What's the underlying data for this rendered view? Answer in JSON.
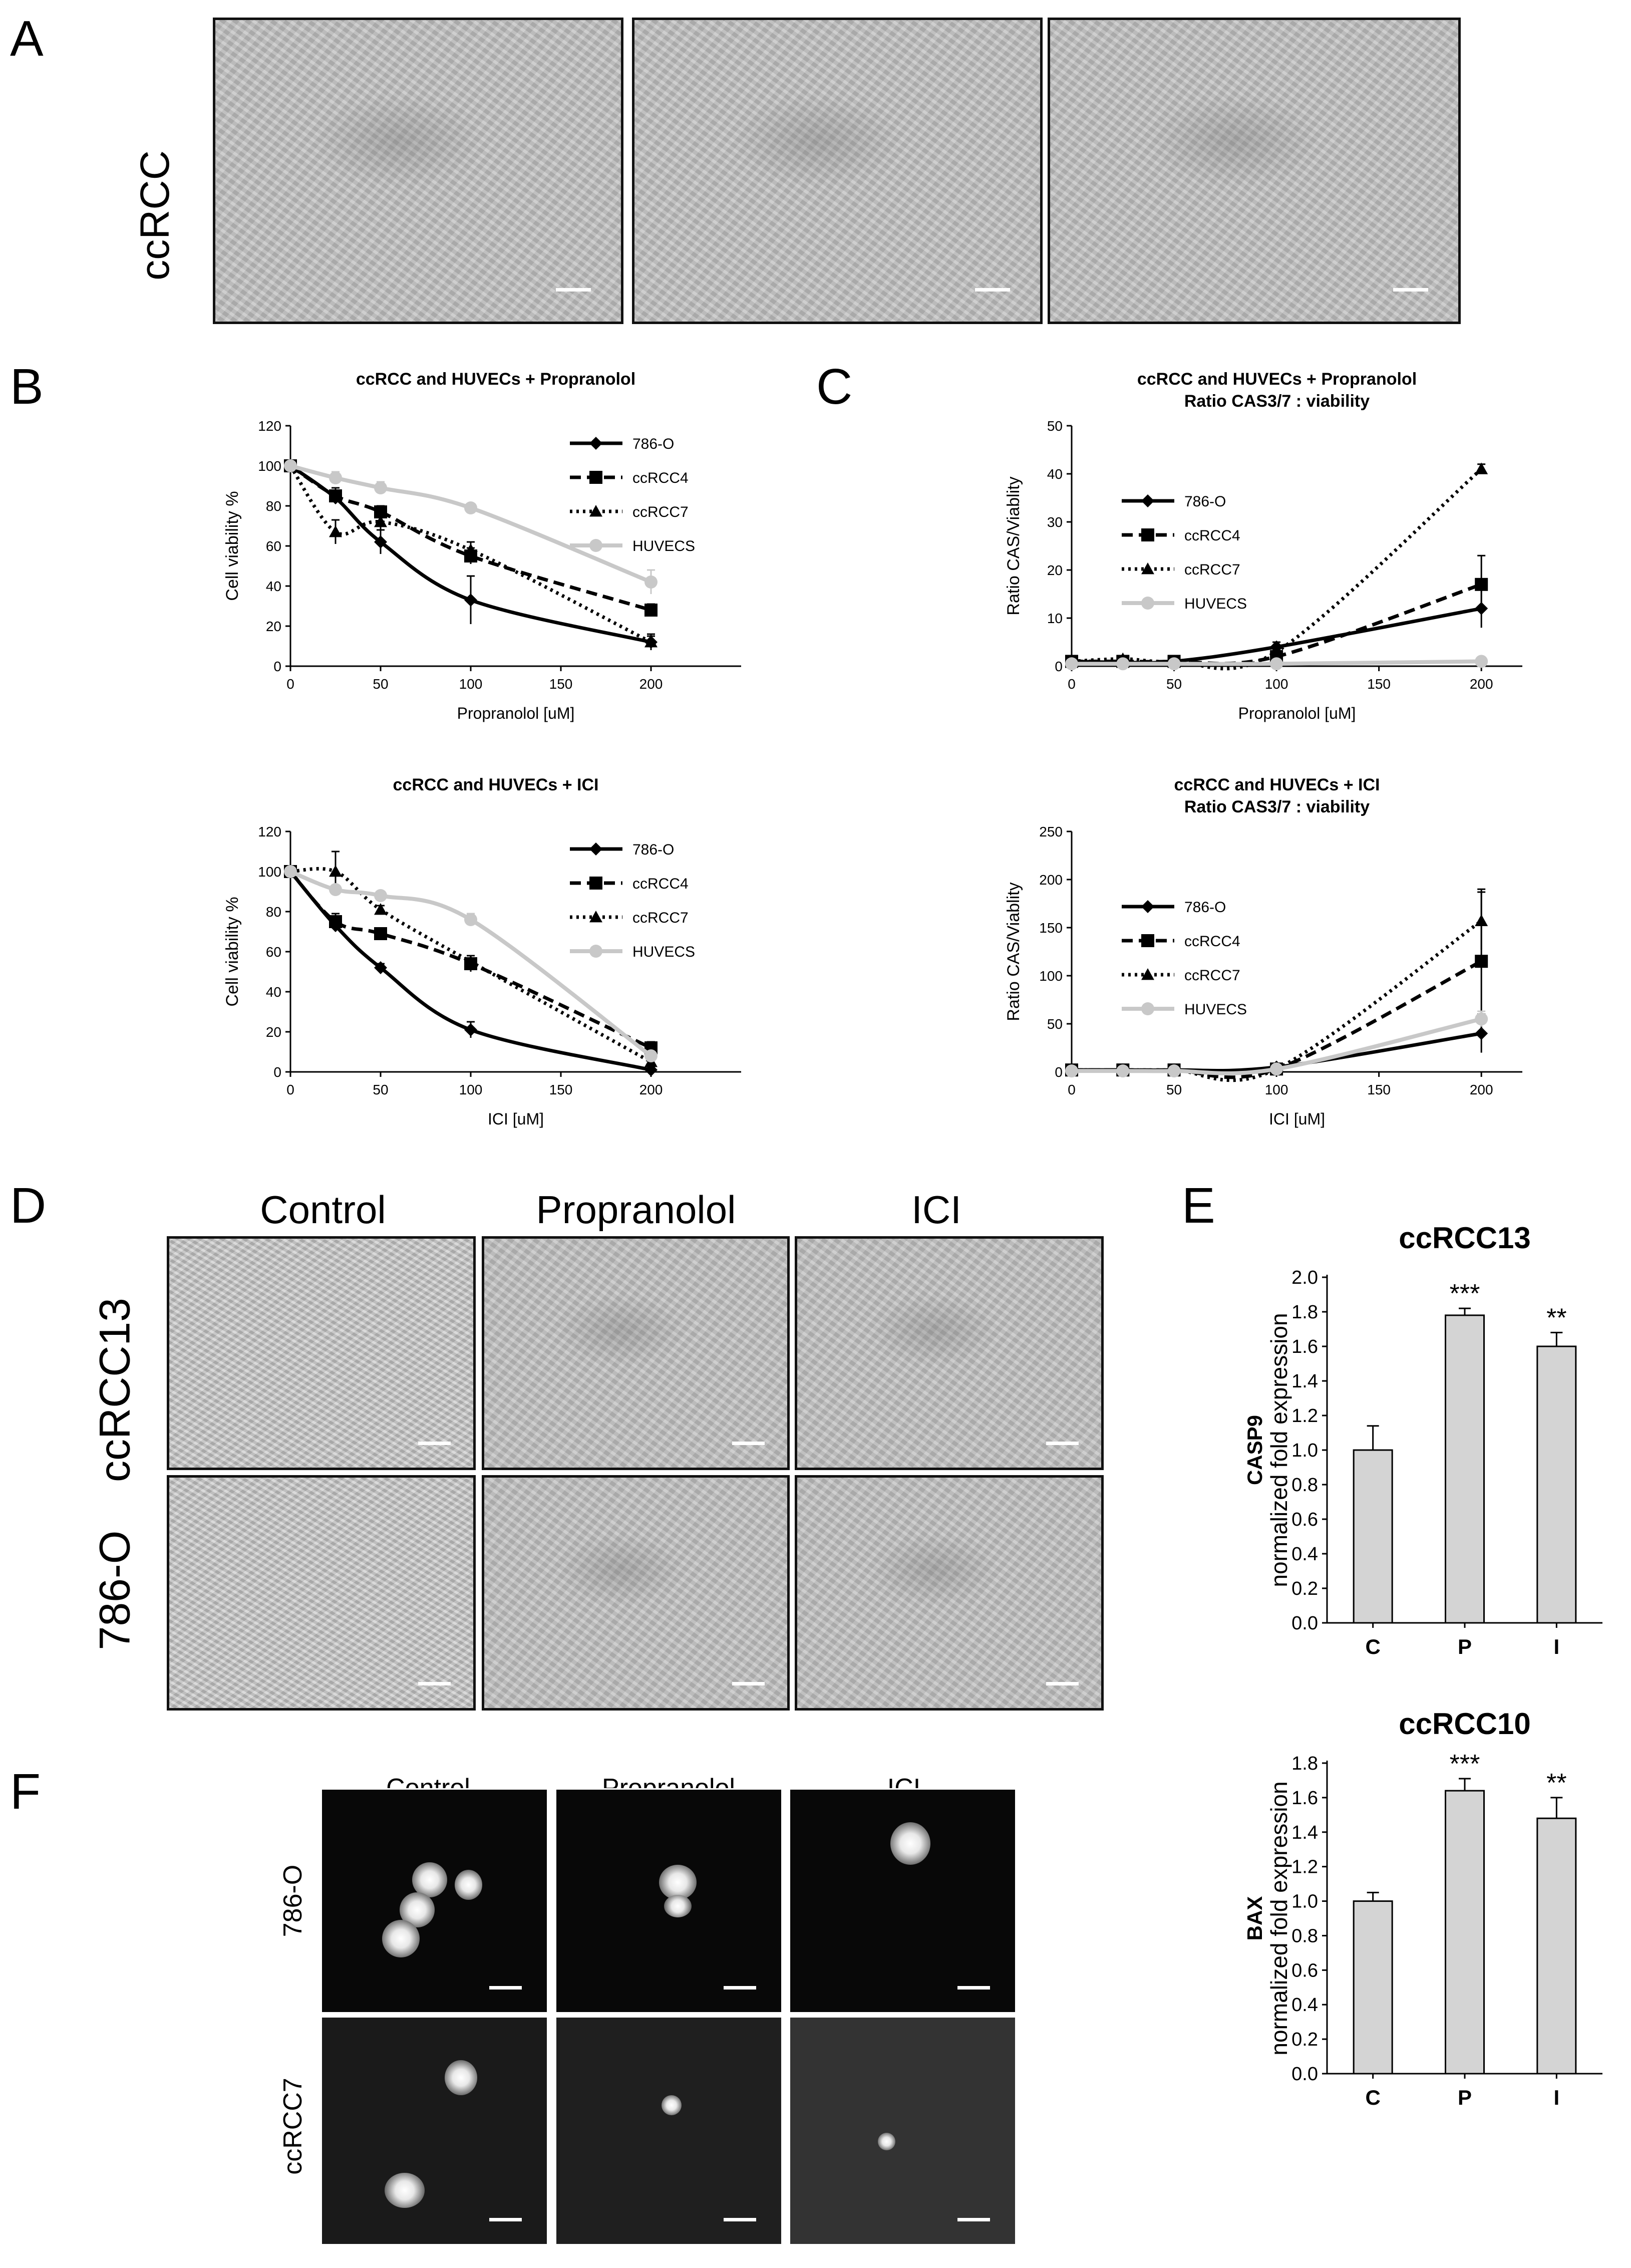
{
  "panels": {
    "A": {
      "letter": "A",
      "row_label": "ccRCC"
    },
    "B": {
      "letter": "B"
    },
    "C": {
      "letter": "C"
    },
    "D": {
      "letter": "D",
      "columns": [
        "Control",
        "Propranolol",
        "ICI"
      ],
      "rows": [
        "ccRCC13",
        "786-O"
      ]
    },
    "E": {
      "letter": "E"
    },
    "F": {
      "letter": "F",
      "columns": [
        "Control",
        "Propranolol",
        "ICI"
      ],
      "rows": [
        "786-O",
        "ccRCC7"
      ]
    }
  },
  "chart_data": [
    {
      "id": "B1",
      "type": "line",
      "title": "ccRCC and HUVECs + Propranolol",
      "xlabel": "Propranolol [uM]",
      "ylabel": "Cell viability %",
      "xlim": [
        0,
        250
      ],
      "ylim": [
        0,
        120
      ],
      "xticks": [
        "0",
        "50",
        "100",
        "150",
        "200"
      ],
      "yticks": [
        "0",
        "20",
        "40",
        "60",
        "80",
        "100",
        "120"
      ],
      "legend_position": "top-right",
      "series": [
        {
          "name": "786-O",
          "marker": "diamond",
          "style": "solid",
          "color": "#000000",
          "x": [
            0,
            25,
            50,
            100,
            200
          ],
          "y": [
            100,
            84,
            62,
            33,
            12
          ],
          "err": [
            0,
            3,
            6,
            12,
            4
          ]
        },
        {
          "name": "ccRCC4",
          "marker": "square",
          "style": "dashed",
          "color": "#000000",
          "x": [
            0,
            25,
            50,
            100,
            200
          ],
          "y": [
            100,
            85,
            77,
            55,
            28
          ],
          "err": [
            0,
            4,
            3,
            4,
            3
          ]
        },
        {
          "name": "ccRCC7",
          "marker": "triangle",
          "style": "dotted",
          "color": "#000000",
          "x": [
            0,
            25,
            50,
            100,
            200
          ],
          "y": [
            100,
            67,
            72,
            58,
            12
          ],
          "err": [
            0,
            6,
            5,
            4,
            3
          ]
        },
        {
          "name": "HUVECS",
          "marker": "circle",
          "style": "solid",
          "color": "#c8c8c8",
          "x": [
            0,
            25,
            50,
            100,
            200
          ],
          "y": [
            100,
            94,
            89,
            79,
            42
          ],
          "err": [
            0,
            3,
            3,
            2,
            6
          ]
        }
      ]
    },
    {
      "id": "B2",
      "type": "line",
      "title": "ccRCC and HUVECs + ICI",
      "xlabel": "ICI [uM]",
      "ylabel": "Cell viability %",
      "xlim": [
        0,
        250
      ],
      "ylim": [
        0,
        120
      ],
      "xticks": [
        "0",
        "50",
        "100",
        "150",
        "200"
      ],
      "yticks": [
        "0",
        "20",
        "40",
        "60",
        "80",
        "100",
        "120"
      ],
      "legend_position": "top-right",
      "series": [
        {
          "name": "786-O",
          "marker": "diamond",
          "style": "solid",
          "color": "#000000",
          "x": [
            0,
            25,
            50,
            100,
            200
          ],
          "y": [
            100,
            73,
            52,
            21,
            1
          ],
          "err": [
            0,
            3,
            2,
            4,
            1
          ]
        },
        {
          "name": "ccRCC4",
          "marker": "square",
          "style": "dashed",
          "color": "#000000",
          "x": [
            0,
            25,
            50,
            100,
            200
          ],
          "y": [
            100,
            75,
            69,
            54,
            12
          ],
          "err": [
            0,
            4,
            2,
            4,
            3
          ]
        },
        {
          "name": "ccRCC7",
          "marker": "triangle",
          "style": "dotted",
          "color": "#000000",
          "x": [
            0,
            25,
            50,
            100,
            200
          ],
          "y": [
            100,
            100,
            81,
            55,
            5
          ],
          "err": [
            0,
            10,
            2,
            3,
            2
          ]
        },
        {
          "name": "HUVECS",
          "marker": "circle",
          "style": "solid",
          "color": "#c8c8c8",
          "x": [
            0,
            25,
            50,
            100,
            200
          ],
          "y": [
            100,
            91,
            88,
            76,
            8
          ],
          "err": [
            0,
            2,
            2,
            3,
            2
          ]
        }
      ]
    },
    {
      "id": "C1",
      "type": "line",
      "title": "ccRCC and HUVECs + Propranolol",
      "subtitle": "Ratio CAS3/7 : viability",
      "xlabel": "Propranolol [uM]",
      "ylabel": "Ratio CAS/Viablity",
      "xlim": [
        0,
        220
      ],
      "ylim": [
        0,
        50
      ],
      "xticks": [
        "0",
        "50",
        "100",
        "150",
        "200"
      ],
      "yticks": [
        "0",
        "10",
        "20",
        "30",
        "40",
        "50"
      ],
      "legend_position": "top-left",
      "series": [
        {
          "name": "786-O",
          "marker": "diamond",
          "style": "solid",
          "color": "#000000",
          "x": [
            0,
            25,
            50,
            100,
            200
          ],
          "y": [
            1,
            0.8,
            1,
            4,
            12
          ],
          "err": [
            0,
            0.3,
            0.3,
            1,
            4
          ]
        },
        {
          "name": "ccRCC4",
          "marker": "square",
          "style": "dashed",
          "color": "#000000",
          "x": [
            0,
            25,
            50,
            100,
            200
          ],
          "y": [
            1,
            1,
            1,
            2,
            17
          ],
          "err": [
            0,
            0.3,
            0.3,
            0.5,
            6
          ]
        },
        {
          "name": "ccRCC7",
          "marker": "triangle",
          "style": "dotted",
          "color": "#000000",
          "x": [
            0,
            25,
            50,
            100,
            200
          ],
          "y": [
            1,
            1.5,
            1,
            3,
            41
          ],
          "err": [
            0,
            0.3,
            0.3,
            0.5,
            1
          ]
        },
        {
          "name": "HUVECS",
          "marker": "circle",
          "style": "solid",
          "color": "#c8c8c8",
          "x": [
            0,
            25,
            50,
            100,
            200
          ],
          "y": [
            0.5,
            0.5,
            0.5,
            0.5,
            1
          ],
          "err": [
            0,
            0.2,
            0.2,
            0.2,
            0.5
          ]
        }
      ]
    },
    {
      "id": "C2",
      "type": "line",
      "title": "ccRCC and HUVECs + ICI",
      "subtitle": "Ratio CAS3/7 : viability",
      "xlabel": "ICI [uM]",
      "ylabel": "Ratio CAS/Viablity",
      "xlim": [
        0,
        220
      ],
      "ylim": [
        0,
        250
      ],
      "xticks": [
        "0",
        "50",
        "100",
        "150",
        "200"
      ],
      "yticks": [
        "0",
        "50",
        "100",
        "150",
        "200",
        "250"
      ],
      "legend_position": "top-left",
      "series": [
        {
          "name": "786-O",
          "marker": "diamond",
          "style": "solid",
          "color": "#000000",
          "x": [
            0,
            25,
            50,
            100,
            200
          ],
          "y": [
            2,
            2,
            2,
            5,
            40
          ],
          "err": [
            0,
            1,
            1,
            2,
            20
          ]
        },
        {
          "name": "ccRCC4",
          "marker": "square",
          "style": "dashed",
          "color": "#000000",
          "x": [
            0,
            25,
            50,
            100,
            200
          ],
          "y": [
            2,
            2,
            2,
            3,
            115
          ],
          "err": [
            0,
            1,
            1,
            1,
            75
          ]
        },
        {
          "name": "ccRCC7",
          "marker": "triangle",
          "style": "dotted",
          "color": "#000000",
          "x": [
            0,
            25,
            50,
            100,
            200
          ],
          "y": [
            2,
            2,
            2,
            3,
            157
          ],
          "err": [
            0,
            1,
            1,
            1,
            30
          ]
        },
        {
          "name": "HUVECS",
          "marker": "circle",
          "style": "solid",
          "color": "#c8c8c8",
          "x": [
            0,
            25,
            50,
            100,
            200
          ],
          "y": [
            1,
            1,
            1,
            3,
            55
          ],
          "err": [
            0,
            1,
            1,
            1,
            8
          ]
        }
      ]
    },
    {
      "id": "E1",
      "type": "bar",
      "title": "ccRCC13",
      "ylabel_bold": "CASP9",
      "ylabel": "normalized fold expression",
      "categories": [
        "C",
        "P",
        "I"
      ],
      "values": [
        1.0,
        1.78,
        1.6
      ],
      "err": [
        0.14,
        0.04,
        0.08
      ],
      "significance": [
        "",
        "***",
        "**"
      ],
      "ylim": [
        0,
        2.0
      ],
      "yticks": [
        "0.0",
        "0.2",
        "0.4",
        "0.6",
        "0.8",
        "1.0",
        "1.2",
        "1.4",
        "1.6",
        "1.8",
        "2.0"
      ],
      "bar_color": "#d4d4d4"
    },
    {
      "id": "E2",
      "type": "bar",
      "title": "ccRCC10",
      "ylabel_bold": "BAX",
      "ylabel": "normalized fold expression",
      "categories": [
        "C",
        "P",
        "I"
      ],
      "values": [
        1.0,
        1.64,
        1.48
      ],
      "err": [
        0.05,
        0.07,
        0.12
      ],
      "significance": [
        "",
        "***",
        "**"
      ],
      "ylim": [
        0,
        1.8
      ],
      "yticks": [
        "0.0",
        "0.2",
        "0.4",
        "0.6",
        "0.8",
        "1.0",
        "1.2",
        "1.4",
        "1.6",
        "1.8"
      ],
      "bar_color": "#d4d4d4"
    }
  ]
}
